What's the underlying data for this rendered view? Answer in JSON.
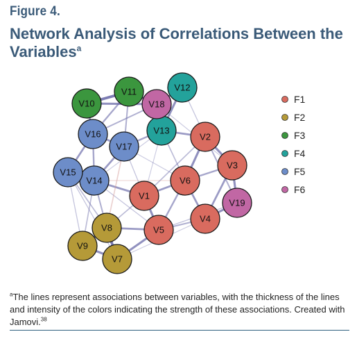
{
  "figure": {
    "label": "Figure 4.",
    "title": "Network Analysis of Correlations Between the Variables",
    "title_marker": "a"
  },
  "legend": [
    {
      "id": "F1",
      "label": "F1",
      "color": "#d96b5f"
    },
    {
      "id": "F2",
      "label": "F2",
      "color": "#b59a38"
    },
    {
      "id": "F3",
      "label": "F3",
      "color": "#3b963e"
    },
    {
      "id": "F4",
      "label": "F4",
      "color": "#23a29b"
    },
    {
      "id": "F5",
      "label": "F5",
      "color": "#6d8dc9"
    },
    {
      "id": "F6",
      "label": "F6",
      "color": "#c167a4"
    }
  ],
  "nodes": [
    {
      "id": "V1",
      "label": "V1",
      "group": "F1"
    },
    {
      "id": "V2",
      "label": "V2",
      "group": "F1"
    },
    {
      "id": "V3",
      "label": "V3",
      "group": "F1"
    },
    {
      "id": "V4",
      "label": "V4",
      "group": "F1"
    },
    {
      "id": "V5",
      "label": "V5",
      "group": "F1"
    },
    {
      "id": "V6",
      "label": "V6",
      "group": "F1"
    },
    {
      "id": "V7",
      "label": "V7",
      "group": "F2"
    },
    {
      "id": "V8",
      "label": "V8",
      "group": "F2"
    },
    {
      "id": "V9",
      "label": "V9",
      "group": "F2"
    },
    {
      "id": "V10",
      "label": "V10",
      "group": "F3"
    },
    {
      "id": "V11",
      "label": "V11",
      "group": "F3"
    },
    {
      "id": "V12",
      "label": "V12",
      "group": "F4"
    },
    {
      "id": "V13",
      "label": "V13",
      "group": "F4"
    },
    {
      "id": "V14",
      "label": "V14",
      "group": "F5"
    },
    {
      "id": "V15",
      "label": "V15",
      "group": "F5"
    },
    {
      "id": "V16",
      "label": "V16",
      "group": "F5"
    },
    {
      "id": "V17",
      "label": "V17",
      "group": "F5"
    },
    {
      "id": "V18",
      "label": "V18",
      "group": "F6"
    },
    {
      "id": "V19",
      "label": "V19",
      "group": "F6"
    }
  ],
  "edges": [
    {
      "source": "V10",
      "target": "V11",
      "weight": 0.9,
      "sign": "positive"
    },
    {
      "source": "V10",
      "target": "V18",
      "weight": 0.7,
      "sign": "positive"
    },
    {
      "source": "V11",
      "target": "V18",
      "weight": 0.8,
      "sign": "positive"
    },
    {
      "source": "V10",
      "target": "V16",
      "weight": 0.6,
      "sign": "positive"
    },
    {
      "source": "V11",
      "target": "V16",
      "weight": 0.5,
      "sign": "positive"
    },
    {
      "source": "V11",
      "target": "V17",
      "weight": 0.4,
      "sign": "positive"
    },
    {
      "source": "V16",
      "target": "V17",
      "weight": 0.6,
      "sign": "positive"
    },
    {
      "source": "V16",
      "target": "V15",
      "weight": 0.6,
      "sign": "positive"
    },
    {
      "source": "V16",
      "target": "V14",
      "weight": 0.5,
      "sign": "positive"
    },
    {
      "source": "V15",
      "target": "V14",
      "weight": 0.9,
      "sign": "positive"
    },
    {
      "source": "V17",
      "target": "V14",
      "weight": 0.6,
      "sign": "positive"
    },
    {
      "source": "V16",
      "target": "V18",
      "weight": 0.4,
      "sign": "positive"
    },
    {
      "source": "V18",
      "target": "V12",
      "weight": 0.7,
      "sign": "positive"
    },
    {
      "source": "V18",
      "target": "V13",
      "weight": 0.5,
      "sign": "positive"
    },
    {
      "source": "V12",
      "target": "V13",
      "weight": 0.7,
      "sign": "positive"
    },
    {
      "source": "V13",
      "target": "V17",
      "weight": 0.5,
      "sign": "positive"
    },
    {
      "source": "V13",
      "target": "V2",
      "weight": 0.6,
      "sign": "positive"
    },
    {
      "source": "V13",
      "target": "V6",
      "weight": 0.3,
      "sign": "positive"
    },
    {
      "source": "V13",
      "target": "V1",
      "weight": 0.15,
      "sign": "positive"
    },
    {
      "source": "V13",
      "target": "V14",
      "weight": 0.15,
      "sign": "positive"
    },
    {
      "source": "V12",
      "target": "V2",
      "weight": 0.2,
      "sign": "positive"
    },
    {
      "source": "V18",
      "target": "V3",
      "weight": 0.15,
      "sign": "positive"
    },
    {
      "source": "V2",
      "target": "V3",
      "weight": 0.7,
      "sign": "positive"
    },
    {
      "source": "V2",
      "target": "V6",
      "weight": 0.7,
      "sign": "positive"
    },
    {
      "source": "V3",
      "target": "V19",
      "weight": 0.7,
      "sign": "positive"
    },
    {
      "source": "V3",
      "target": "V4",
      "weight": 0.6,
      "sign": "positive"
    },
    {
      "source": "V3",
      "target": "V6",
      "weight": 0.5,
      "sign": "positive"
    },
    {
      "source": "V2",
      "target": "V19",
      "weight": 0.4,
      "sign": "positive"
    },
    {
      "source": "V4",
      "target": "V19",
      "weight": 0.7,
      "sign": "positive"
    },
    {
      "source": "V6",
      "target": "V4",
      "weight": 0.6,
      "sign": "positive"
    },
    {
      "source": "V6",
      "target": "V1",
      "weight": 0.6,
      "sign": "positive"
    },
    {
      "source": "V6",
      "target": "V5",
      "weight": 0.5,
      "sign": "positive"
    },
    {
      "source": "V1",
      "target": "V5",
      "weight": 0.7,
      "sign": "positive"
    },
    {
      "source": "V2",
      "target": "V1",
      "weight": 0.3,
      "sign": "positive"
    },
    {
      "source": "V5",
      "target": "V4",
      "weight": 0.4,
      "sign": "positive"
    },
    {
      "source": "V1",
      "target": "V14",
      "weight": 0.6,
      "sign": "positive"
    },
    {
      "source": "V1",
      "target": "V17",
      "weight": 0.2,
      "sign": "positive"
    },
    {
      "source": "V1",
      "target": "V8",
      "weight": 0.3,
      "sign": "positive"
    },
    {
      "source": "V5",
      "target": "V8",
      "weight": 0.6,
      "sign": "positive"
    },
    {
      "source": "V5",
      "target": "V7",
      "weight": 0.7,
      "sign": "positive"
    },
    {
      "source": "V8",
      "target": "V7",
      "weight": 0.9,
      "sign": "positive"
    },
    {
      "source": "V8",
      "target": "V9",
      "weight": 0.8,
      "sign": "positive"
    },
    {
      "source": "V9",
      "target": "V7",
      "weight": 0.7,
      "sign": "positive"
    },
    {
      "source": "V14",
      "target": "V8",
      "weight": 0.4,
      "sign": "positive"
    },
    {
      "source": "V15",
      "target": "V8",
      "weight": 0.3,
      "sign": "positive"
    },
    {
      "source": "V14",
      "target": "V5",
      "weight": 0.2,
      "sign": "positive"
    },
    {
      "source": "V14",
      "target": "V9",
      "weight": 0.3,
      "sign": "positive"
    },
    {
      "source": "V15",
      "target": "V9",
      "weight": 0.2,
      "sign": "positive"
    },
    {
      "source": "V15",
      "target": "V7",
      "weight": 0.2,
      "sign": "positive"
    },
    {
      "source": "V17",
      "target": "V8",
      "weight": 0.3,
      "sign": "negative"
    },
    {
      "source": "V17",
      "target": "V6",
      "weight": 0.15,
      "sign": "positive"
    },
    {
      "source": "V14",
      "target": "V6",
      "weight": 0.15,
      "sign": "negative"
    },
    {
      "source": "V4",
      "target": "V7",
      "weight": 0.15,
      "sign": "positive"
    },
    {
      "source": "V19",
      "target": "V5",
      "weight": 0.2,
      "sign": "positive"
    }
  ],
  "edge_colors": {
    "positive": "#6a6aa8",
    "negative": "#d49a98"
  },
  "footnote": {
    "marker": "a",
    "text": "The lines represent associations between variables, with the thickness of the lines and intensity of the colors indicating the strength of these associations. Created with Jamovi.",
    "ref": "38"
  }
}
